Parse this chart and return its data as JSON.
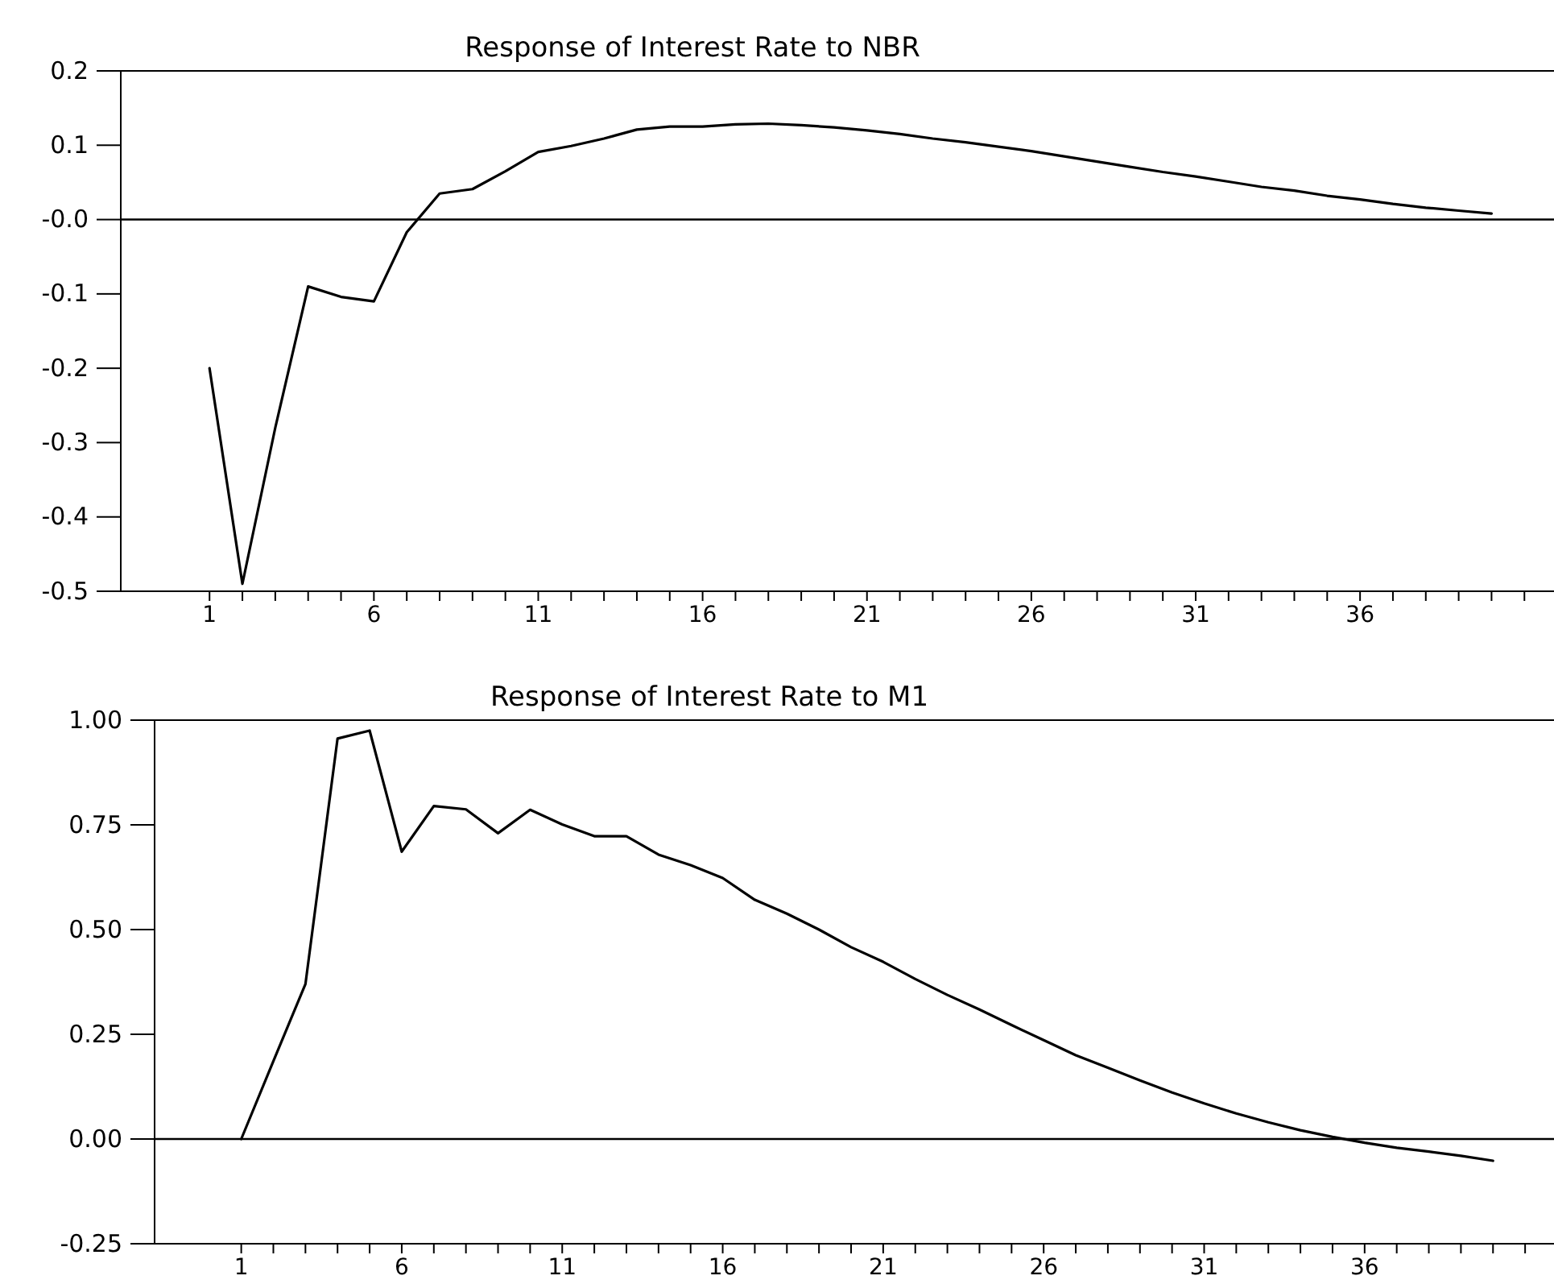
{
  "chart_data": [
    {
      "type": "line",
      "title": "Response of Interest Rate to NBR",
      "x": [
        1,
        2,
        3,
        4,
        5,
        6,
        7,
        8,
        9,
        10,
        11,
        12,
        13,
        14,
        15,
        16,
        17,
        18,
        19,
        20,
        21,
        22,
        23,
        24,
        25,
        26,
        27,
        28,
        29,
        30,
        31,
        32,
        33,
        34,
        35,
        36,
        37,
        38,
        39,
        40
      ],
      "series": [
        {
          "color": "#000000",
          "values": [
            -0.2,
            -0.49,
            -0.28,
            -0.09,
            -0.104,
            -0.11,
            -0.017,
            0.035,
            0.041,
            0.065,
            0.091,
            0.099,
            0.109,
            0.121,
            0.125,
            0.125,
            0.128,
            0.129,
            0.127,
            0.124,
            0.12,
            0.115,
            0.109,
            0.104,
            0.098,
            0.092,
            0.085,
            0.078,
            0.071,
            0.064,
            0.058,
            0.051,
            0.044,
            0.039,
            0.032,
            0.027,
            0.021,
            0.016,
            0.012,
            0.008
          ]
        }
      ],
      "xlim": [
        -1.7,
        41.9
      ],
      "xticks": [
        1,
        {
          "value": 2,
          "label": null
        },
        {
          "value": 3,
          "label": null
        },
        {
          "value": 4,
          "label": null
        },
        {
          "value": 5,
          "label": null
        },
        6,
        {
          "value": 7,
          "label": null
        },
        {
          "value": 8,
          "label": null
        },
        {
          "value": 9,
          "label": null
        },
        {
          "value": 10,
          "label": null
        },
        11,
        {
          "value": 12,
          "label": null
        },
        {
          "value": 13,
          "label": null
        },
        {
          "value": 14,
          "label": null
        },
        {
          "value": 15,
          "label": null
        },
        16,
        {
          "value": 17,
          "label": null
        },
        {
          "value": 18,
          "label": null
        },
        {
          "value": 19,
          "label": null
        },
        {
          "value": 20,
          "label": null
        },
        21,
        {
          "value": 22,
          "label": null
        },
        {
          "value": 23,
          "label": null
        },
        {
          "value": 24,
          "label": null
        },
        {
          "value": 25,
          "label": null
        },
        26,
        {
          "value": 27,
          "label": null
        },
        {
          "value": 28,
          "label": null
        },
        {
          "value": 29,
          "label": null
        },
        {
          "value": 30,
          "label": null
        },
        31,
        {
          "value": 32,
          "label": null
        },
        {
          "value": 33,
          "label": null
        },
        {
          "value": 34,
          "label": null
        },
        {
          "value": 35,
          "label": null
        },
        36,
        {
          "value": 37,
          "label": null
        },
        {
          "value": 38,
          "label": null
        },
        {
          "value": 39,
          "label": null
        },
        {
          "value": 40,
          "label": null
        },
        {
          "value": 41,
          "label": null
        }
      ],
      "ylim": [
        -0.5,
        0.2
      ],
      "yticks": [
        -0.5,
        -0.4,
        -0.3,
        -0.2,
        -0.1,
        {
          "value": 0,
          "label": "-0.0"
        },
        0.1,
        0.2
      ],
      "ref_lines": [
        {
          "axis": "y",
          "value": 0,
          "color": "#000000"
        }
      ]
    },
    {
      "type": "line",
      "title": "Response of Interest Rate to M1",
      "x": [
        1,
        2,
        3,
        4,
        5,
        6,
        7,
        8,
        9,
        10,
        11,
        12,
        13,
        14,
        15,
        16,
        17,
        18,
        19,
        20,
        21,
        22,
        23,
        24,
        25,
        26,
        27,
        28,
        29,
        30,
        31,
        32,
        33,
        34,
        35,
        36,
        37,
        38,
        39,
        40
      ],
      "series": [
        {
          "color": "#000000",
          "values": [
            0,
            0.186,
            0.37,
            0.956,
            0.975,
            0.686,
            0.795,
            0.787,
            0.73,
            0.786,
            0.751,
            0.723,
            0.723,
            0.679,
            0.654,
            0.623,
            0.571,
            0.538,
            0.5,
            0.458,
            0.423,
            0.382,
            0.344,
            0.309,
            0.272,
            0.236,
            0.2,
            0.17,
            0.14,
            0.111,
            0.085,
            0.061,
            0.04,
            0.021,
            0.005,
            -0.009,
            -0.021,
            -0.03,
            -0.04,
            -0.052
          ]
        }
      ],
      "xlim": [
        -1.7,
        41.9
      ],
      "xticks": [
        1,
        {
          "value": 2,
          "label": null
        },
        {
          "value": 3,
          "label": null
        },
        {
          "value": 4,
          "label": null
        },
        {
          "value": 5,
          "label": null
        },
        6,
        {
          "value": 7,
          "label": null
        },
        {
          "value": 8,
          "label": null
        },
        {
          "value": 9,
          "label": null
        },
        {
          "value": 10,
          "label": null
        },
        11,
        {
          "value": 12,
          "label": null
        },
        {
          "value": 13,
          "label": null
        },
        {
          "value": 14,
          "label": null
        },
        {
          "value": 15,
          "label": null
        },
        16,
        {
          "value": 17,
          "label": null
        },
        {
          "value": 18,
          "label": null
        },
        {
          "value": 19,
          "label": null
        },
        {
          "value": 20,
          "label": null
        },
        21,
        {
          "value": 22,
          "label": null
        },
        {
          "value": 23,
          "label": null
        },
        {
          "value": 24,
          "label": null
        },
        {
          "value": 25,
          "label": null
        },
        26,
        {
          "value": 27,
          "label": null
        },
        {
          "value": 28,
          "label": null
        },
        {
          "value": 29,
          "label": null
        },
        {
          "value": 30,
          "label": null
        },
        31,
        {
          "value": 32,
          "label": null
        },
        {
          "value": 33,
          "label": null
        },
        {
          "value": 34,
          "label": null
        },
        {
          "value": 35,
          "label": null
        },
        36,
        {
          "value": 37,
          "label": null
        },
        {
          "value": 38,
          "label": null
        },
        {
          "value": 39,
          "label": null
        },
        {
          "value": 40,
          "label": null
        },
        {
          "value": 41,
          "label": null
        }
      ],
      "ylim": [
        -0.25,
        1.0
      ],
      "yticks": [
        {
          "value": -0.25,
          "label": "-0.25"
        },
        {
          "value": 0,
          "label": "0.00"
        },
        {
          "value": 0.25,
          "label": "0.25"
        },
        {
          "value": 0.5,
          "label": "0.50"
        },
        {
          "value": 0.75,
          "label": "0.75"
        },
        {
          "value": 1,
          "label": "1.00"
        }
      ],
      "ref_lines": [
        {
          "axis": "y",
          "value": 0,
          "color": "#000000"
        }
      ]
    }
  ]
}
